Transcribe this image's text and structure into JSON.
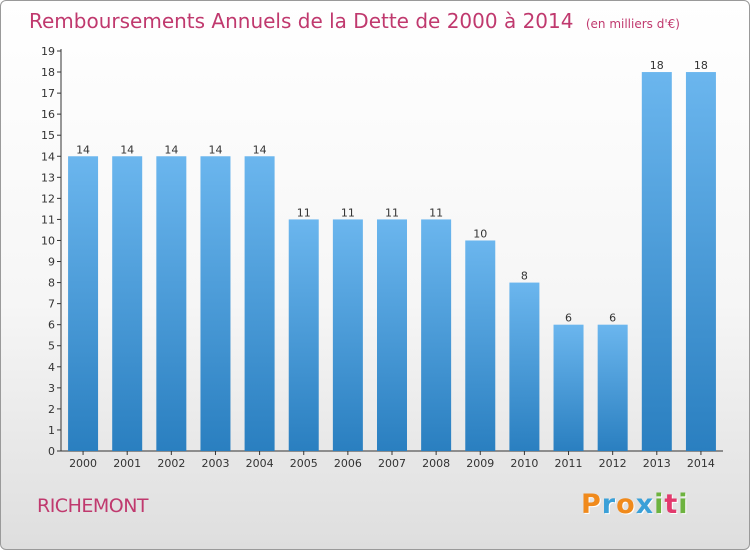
{
  "title": "Remboursements Annuels de la Dette de 2000 à 2014",
  "unit": "(en milliers d'€)",
  "commune": "RICHEMONT",
  "logo": {
    "letters": [
      "P",
      "r",
      "o",
      "x",
      "i",
      "t",
      "i"
    ],
    "colors": [
      "#f08a1c",
      "#3aa0d8",
      "#f08a1c",
      "#3aa0d8",
      "#6db33f",
      "#e23a6d",
      "#6db33f"
    ]
  },
  "colors": {
    "bar_top": "#6bb6ee",
    "bar_bottom": "#2a7fc0",
    "title": "#c0396e",
    "axis": "#333333"
  },
  "chart_data": {
    "type": "bar",
    "title": "Remboursements Annuels de la Dette de 2000 à 2014",
    "ylabel": "",
    "xlabel": "",
    "categories": [
      "2000",
      "2001",
      "2002",
      "2003",
      "2004",
      "2005",
      "2006",
      "2007",
      "2008",
      "2009",
      "2010",
      "2011",
      "2012",
      "2013",
      "2014"
    ],
    "values": [
      14,
      14,
      14,
      14,
      14,
      11,
      11,
      11,
      11,
      10,
      8,
      6,
      6,
      18,
      18
    ],
    "data_labels": [
      "14",
      "14",
      "14",
      "14",
      "14",
      "11",
      "11",
      "11",
      "11",
      "10",
      "8",
      "6",
      "6",
      "18",
      "18"
    ],
    "ylim": [
      0,
      19
    ],
    "yticks": [
      0,
      1,
      2,
      3,
      4,
      5,
      6,
      7,
      8,
      9,
      10,
      11,
      12,
      13,
      14,
      15,
      16,
      17,
      18,
      19
    ],
    "grid": false,
    "legend": "none"
  }
}
